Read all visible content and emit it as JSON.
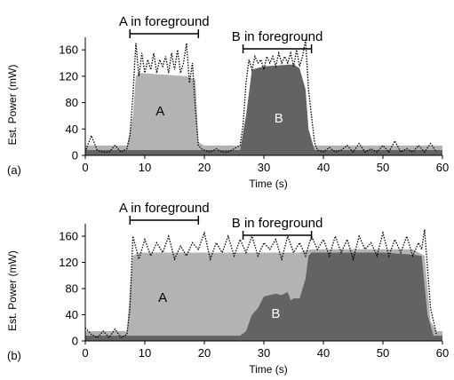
{
  "chart_data": [
    {
      "panel": "(a)",
      "type": "area",
      "xlabel": "Time (s)",
      "ylabel": "Est. Power (mW)",
      "xlim": [
        0,
        60
      ],
      "ylim": [
        0,
        175
      ],
      "xticks": [
        0,
        10,
        20,
        30,
        40,
        50,
        60
      ],
      "yticks": [
        0,
        40,
        80,
        120,
        160
      ],
      "annotations": [
        {
          "text": "A in foreground",
          "x_from": 7.5,
          "x_to": 19
        },
        {
          "text": "B in foreground",
          "x_from": 26.5,
          "x_to": 38
        }
      ],
      "series": [
        {
          "name": "A",
          "color": "#b3b3b3",
          "x": [
            0,
            7,
            8,
            8.5,
            9,
            17,
            18.5,
            19,
            20,
            60
          ],
          "y": [
            15,
            15,
            60,
            120,
            125,
            120,
            115,
            20,
            15,
            15
          ]
        },
        {
          "name": "B",
          "color": "#636363",
          "x": [
            0,
            26,
            27,
            28,
            30,
            35,
            36,
            37,
            37.5,
            38.5,
            60
          ],
          "y": [
            8,
            8,
            60,
            130,
            135,
            138,
            132,
            100,
            40,
            8,
            8
          ]
        }
      ],
      "total": {
        "style": "dotted",
        "x": [
          0,
          1,
          2,
          3,
          4,
          5,
          6,
          7,
          7.5,
          8,
          8.5,
          9,
          9.5,
          10,
          10.5,
          11,
          11.5,
          12,
          12.5,
          13,
          13.5,
          14,
          14.5,
          15,
          15.5,
          16,
          16.5,
          17,
          17.5,
          18,
          18.5,
          19,
          19.5,
          20,
          21,
          22,
          23,
          24,
          25,
          26,
          26.5,
          27,
          27.5,
          28,
          28.5,
          29,
          29.5,
          30,
          30.5,
          31,
          31.5,
          32,
          32.5,
          33,
          33.5,
          34,
          34.5,
          35,
          35.5,
          36,
          36.5,
          37,
          37.5,
          38,
          38.5,
          39,
          40,
          41,
          42,
          43,
          44,
          45,
          46,
          47,
          48,
          49,
          50,
          51,
          52,
          53,
          54,
          55,
          56,
          57,
          58,
          59
        ],
        "y": [
          5,
          30,
          8,
          5,
          5,
          15,
          5,
          10,
          30,
          90,
          170,
          120,
          155,
          125,
          145,
          130,
          155,
          125,
          145,
          135,
          150,
          125,
          155,
          130,
          160,
          125,
          140,
          170,
          110,
          140,
          70,
          15,
          10,
          8,
          5,
          10,
          5,
          5,
          10,
          15,
          45,
          110,
          145,
          130,
          150,
          140,
          145,
          130,
          150,
          140,
          150,
          135,
          155,
          140,
          150,
          140,
          155,
          135,
          160,
          135,
          150,
          175,
          100,
          60,
          20,
          8,
          5,
          12,
          5,
          8,
          15,
          5,
          18,
          5,
          10,
          5,
          15,
          5,
          22,
          5,
          10,
          5,
          15,
          5,
          18,
          5
        ]
      }
    },
    {
      "panel": "(b)",
      "type": "area",
      "xlabel": "Time (s)",
      "ylabel": "Est. Power (mW)",
      "xlim": [
        0,
        60
      ],
      "ylim": [
        0,
        175
      ],
      "xticks": [
        0,
        10,
        20,
        30,
        40,
        50,
        60
      ],
      "yticks": [
        0,
        40,
        80,
        120,
        160
      ],
      "annotations": [
        {
          "text": "A in foreground",
          "x_from": 7.5,
          "x_to": 19
        },
        {
          "text": "B in foreground",
          "x_from": 26.5,
          "x_to": 38
        }
      ],
      "series": [
        {
          "name": "A",
          "color": "#b3b3b3",
          "x": [
            0,
            7,
            7.5,
            8,
            9,
            15,
            20,
            25,
            30,
            35,
            36,
            37,
            38,
            45,
            50,
            55,
            57,
            58,
            59,
            60
          ],
          "y": [
            15,
            15,
            80,
            130,
            135,
            135,
            135,
            135,
            135,
            135,
            135,
            138,
            140,
            140,
            140,
            140,
            130,
            30,
            15,
            15
          ]
        },
        {
          "name": "B",
          "color": "#636363",
          "x": [
            0,
            26,
            27,
            28,
            29,
            30,
            31,
            32,
            33,
            34,
            34.5,
            35,
            36,
            37,
            37.5,
            38,
            40,
            45,
            50,
            55,
            56.5,
            57.5,
            58.5,
            60
          ],
          "y": [
            8,
            8,
            15,
            40,
            50,
            68,
            70,
            72,
            70,
            75,
            62,
            65,
            65,
            95,
            130,
            135,
            135,
            135,
            135,
            132,
            130,
            40,
            8,
            8
          ]
        }
      ],
      "total": {
        "style": "dotted",
        "x": [
          0,
          1,
          2,
          3,
          4,
          5,
          6,
          7,
          7.5,
          8,
          9,
          10,
          11,
          12,
          13,
          14,
          15,
          16,
          17,
          18,
          19,
          20,
          21,
          22,
          23,
          24,
          25,
          26,
          27,
          28,
          29,
          30,
          31,
          32,
          33,
          34,
          35,
          36,
          37,
          38,
          39,
          40,
          41,
          42,
          43,
          44,
          45,
          46,
          47,
          48,
          49,
          50,
          51,
          52,
          53,
          54,
          55,
          56,
          56.5,
          57,
          58,
          59
        ],
        "y": [
          20,
          10,
          5,
          15,
          5,
          18,
          5,
          10,
          50,
          160,
          125,
          155,
          130,
          150,
          135,
          160,
          125,
          145,
          130,
          150,
          140,
          165,
          125,
          150,
          135,
          160,
          130,
          155,
          135,
          160,
          130,
          150,
          140,
          155,
          125,
          160,
          135,
          150,
          130,
          160,
          140,
          155,
          130,
          160,
          135,
          155,
          125,
          160,
          140,
          150,
          130,
          165,
          130,
          155,
          135,
          160,
          130,
          150,
          140,
          170,
          50,
          10
        ]
      }
    }
  ]
}
